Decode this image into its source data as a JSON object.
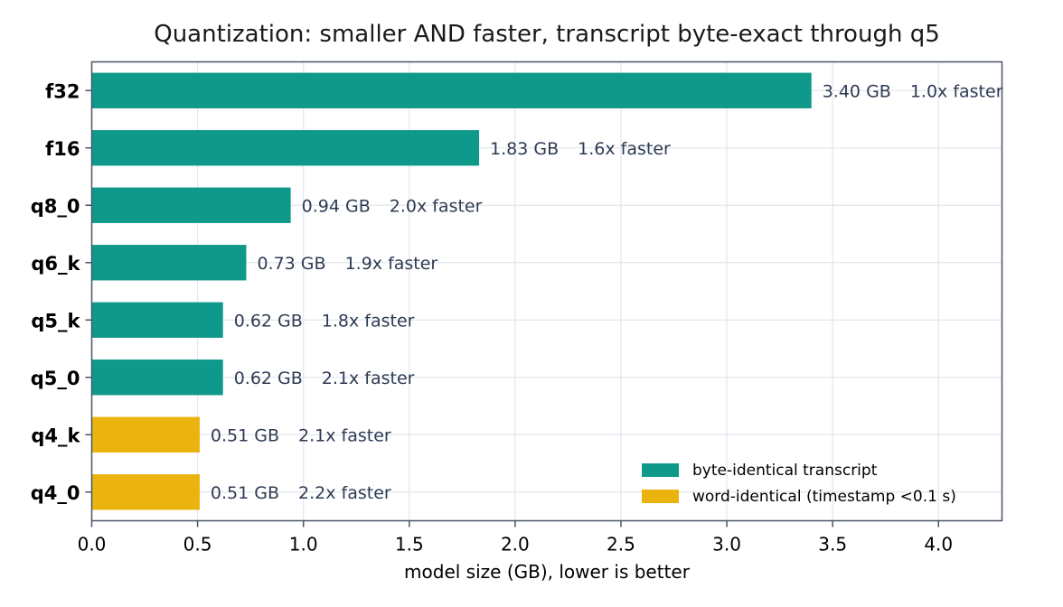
{
  "chart_data": {
    "type": "bar",
    "orientation": "horizontal",
    "title": "Quantization: smaller AND faster, transcript byte-exact through q5",
    "xlabel": "model size (GB), lower is better",
    "ylabel": "",
    "xlim": [
      0,
      4.3
    ],
    "x_ticks": [
      "0.0",
      "0.5",
      "1.0",
      "1.5",
      "2.0",
      "2.5",
      "3.0",
      "3.5",
      "4.0"
    ],
    "grid": true,
    "legend_position": "bottom-right",
    "categories": [
      "f32",
      "f16",
      "q8_0",
      "q6_k",
      "q5_k",
      "q5_0",
      "q4_k",
      "q4_0"
    ],
    "values": [
      3.4,
      1.83,
      0.94,
      0.73,
      0.62,
      0.62,
      0.51,
      0.51
    ],
    "size_labels": [
      "3.40 GB",
      "1.83 GB",
      "0.94 GB",
      "0.73 GB",
      "0.62 GB",
      "0.62 GB",
      "0.51 GB",
      "0.51 GB"
    ],
    "speed_labels": [
      "1.0x faster",
      "1.6x faster",
      "2.0x faster",
      "1.9x faster",
      "1.8x faster",
      "2.1x faster",
      "2.1x faster",
      "2.2x faster"
    ],
    "groups": [
      "byte-identical",
      "byte-identical",
      "byte-identical",
      "byte-identical",
      "byte-identical",
      "byte-identical",
      "word-identical",
      "word-identical"
    ],
    "legend": [
      {
        "key": "byte-identical",
        "label": "byte-identical transcript",
        "color": "#0e998a"
      },
      {
        "key": "word-identical",
        "label": "word-identical (timestamp <0.1 s)",
        "color": "#ebb30d"
      }
    ]
  }
}
